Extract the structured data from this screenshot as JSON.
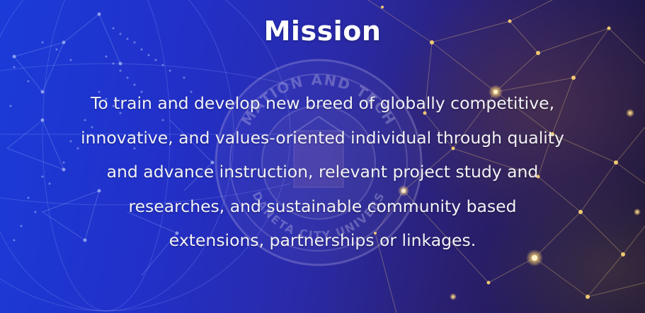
{
  "slide": {
    "title": "Mission",
    "lines": [
      "To train and develop new breed of globally competitive,",
      "innovative, and values-oriented individual through quality",
      "and advance instruction, relevant project study and",
      "researches, and sustainable community based",
      "extensions, partnerships or linkages."
    ],
    "watermark": {
      "top_text": "MATION AND TECH",
      "bottom_text": "DANETA CITY UNIVERS"
    }
  },
  "colors": {
    "background_left": "#1b3bd8",
    "background_right": "#1c1538",
    "network_nodes": "#f0c870",
    "text": "#ffffff"
  }
}
